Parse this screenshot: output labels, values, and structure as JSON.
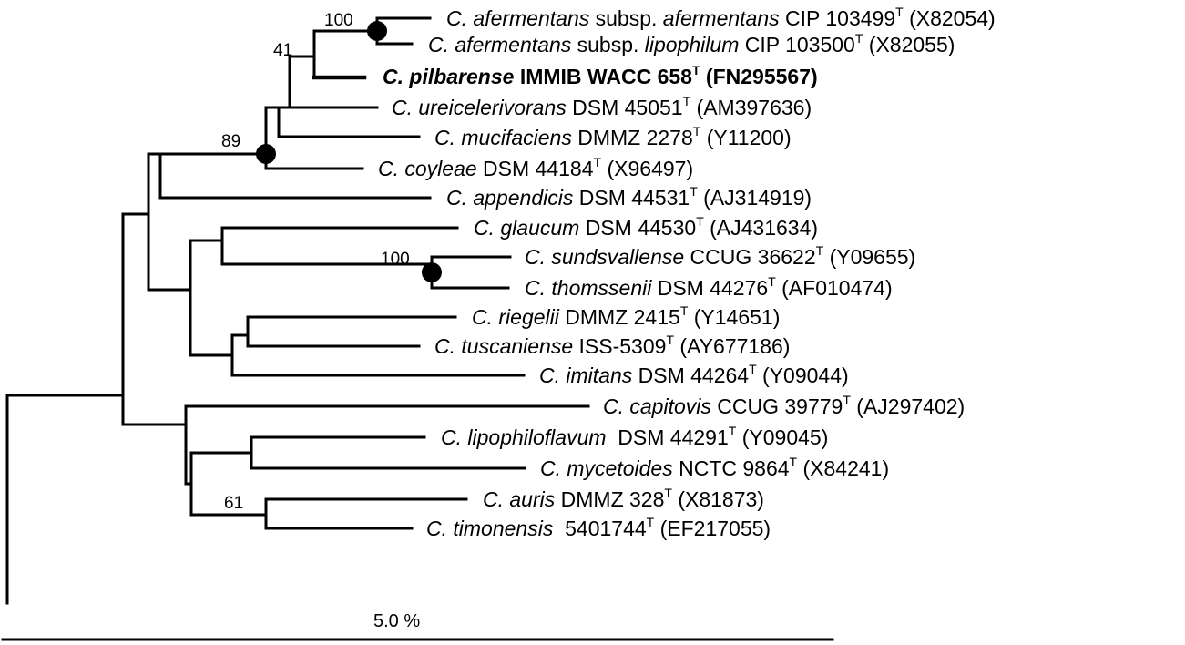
{
  "tree": {
    "leaves": {
      "afermentans_afermentans": {
        "name": "C. afermentans",
        "middle": " subsp. ",
        "epithet": "afermentans",
        "strain": " CIP 103499",
        "type_mark": "T",
        "accession": " (X82054)"
      },
      "afermentans_lipophilum": {
        "name": "C. afermentans",
        "middle": " subsp. ",
        "epithet": "lipophilum",
        "strain": " CIP 103500",
        "type_mark": "T",
        "accession": " (X82055)"
      },
      "pilbarense": {
        "name": "C. pilbarense",
        "strain": " IMMIB WACC 658",
        "type_mark": "T",
        "accession": " (FN295567)"
      },
      "ureicelerivorans": {
        "name": "C. ureicelerivorans",
        "strain": " DSM 45051",
        "type_mark": "T",
        "accession": " (AM397636)"
      },
      "mucifaciens": {
        "name": "C. mucifaciens",
        "strain": " DMMZ 2278",
        "type_mark": "T",
        "accession": " (Y11200)"
      },
      "coyleae": {
        "name": "C. coyleae",
        "strain": " DSM 44184",
        "type_mark": "T",
        "accession": " (X96497)"
      },
      "appendicis": {
        "name": "C. appendicis",
        "strain": " DSM 44531",
        "type_mark": "T",
        "accession": " (AJ314919)"
      },
      "glaucum": {
        "name": "C. glaucum",
        "strain": " DSM 44530",
        "type_mark": "T",
        "accession": " (AJ431634)"
      },
      "sundsvallense": {
        "name": "C. sundsvallense",
        "strain": " CCUG 36622",
        "type_mark": "T",
        "accession": " (Y09655)"
      },
      "thomssenii": {
        "name": "C. thomssenii",
        "strain": " DSM 44276",
        "type_mark": "T",
        "accession": " (AF010474)"
      },
      "riegelii": {
        "name": "C. riegelii",
        "strain": " DMMZ 2415",
        "type_mark": "T",
        "accession": " (Y14651)"
      },
      "tuscaniense": {
        "name": "C. tuscaniense",
        "strain": " ISS-5309",
        "type_mark": "T",
        "accession": " (AY677186)"
      },
      "imitans": {
        "name": "C. imitans",
        "strain": " DSM 44264",
        "type_mark": "T",
        "accession": " (Y09044)"
      },
      "capitovis": {
        "name": "C. capitovis",
        "strain": " CCUG 39779",
        "type_mark": "T",
        "accession": " (AJ297402)"
      },
      "lipophiloflavum": {
        "name": "C. lipophiloflavum",
        "strain": "  DSM 44291",
        "type_mark": "T",
        "accession": " (Y09045)"
      },
      "mycetoides": {
        "name": "C. mycetoides",
        "strain": " NCTC 9864",
        "type_mark": "T",
        "accession": " (X84241)"
      },
      "auris": {
        "name": "C. auris",
        "strain": " DMMZ 328",
        "type_mark": "T",
        "accession": " (X81873)"
      },
      "timonensis": {
        "name": "C. timonensis",
        "strain": "  5401744",
        "type_mark": "T",
        "accession": " (EF217055)"
      }
    },
    "bootstrap": {
      "afermentans_clade": "100",
      "pilbarense_clade": "41",
      "coyleae_clade": "89",
      "sundsvallense_clade": "100",
      "auris_clade": "61"
    },
    "scale_bar": {
      "label": "5.0 %"
    }
  }
}
